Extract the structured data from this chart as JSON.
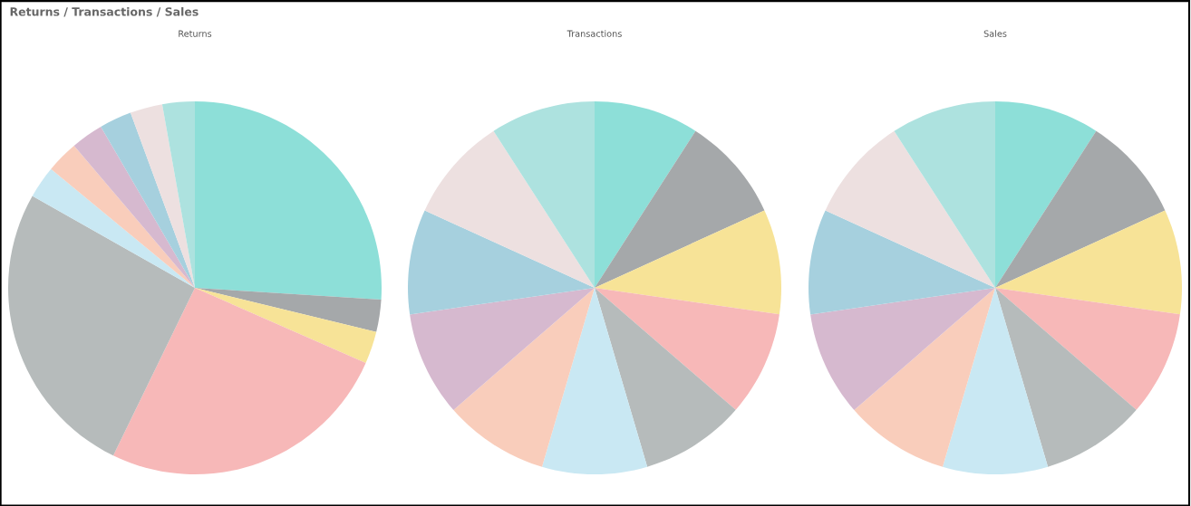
{
  "chart_data": [
    {
      "type": "pie",
      "title": "Returns",
      "annotations": [
        "Returns / Transactions / Sales"
      ],
      "categories": [
        null,
        null,
        null,
        null,
        null,
        null,
        null,
        null,
        null,
        null,
        null
      ],
      "values": [
        26,
        2.8,
        2.8,
        25.6,
        26,
        2.8,
        2.8,
        2.8,
        2.8,
        2.8,
        2.8
      ],
      "colors": [
        "#8ddfd8",
        "#a5a8aa",
        "#f7e397",
        "#f7b8b8",
        "#b6bbbb",
        "#c9e8f3",
        "#f9cdbb",
        "#d6b9cf",
        "#a6d0de",
        "#ede0e0",
        "#ade2df"
      ]
    },
    {
      "type": "pie",
      "title": "Transactions",
      "categories": [
        null,
        null,
        null,
        null,
        null,
        null,
        null,
        null,
        null,
        null,
        null
      ],
      "values": [
        9.09,
        9.09,
        9.09,
        9.09,
        9.09,
        9.09,
        9.09,
        9.09,
        9.09,
        9.09,
        9.1
      ],
      "colors": [
        "#8ddfd8",
        "#a5a8aa",
        "#f7e397",
        "#f7b8b8",
        "#b6bbbb",
        "#c9e8f3",
        "#f9cdbb",
        "#d6b9cf",
        "#a6d0de",
        "#ede0e0",
        "#ade2df"
      ]
    },
    {
      "type": "pie",
      "title": "Sales",
      "categories": [
        null,
        null,
        null,
        null,
        null,
        null,
        null,
        null,
        null,
        null,
        null
      ],
      "values": [
        9.09,
        9.09,
        9.09,
        9.09,
        9.09,
        9.09,
        9.09,
        9.09,
        9.09,
        9.09,
        9.1
      ],
      "colors": [
        "#8ddfd8",
        "#a5a8aa",
        "#f7e397",
        "#f7b8b8",
        "#b6bbbb",
        "#c9e8f3",
        "#f9cdbb",
        "#d6b9cf",
        "#a6d0de",
        "#ede0e0",
        "#ade2df"
      ]
    }
  ]
}
